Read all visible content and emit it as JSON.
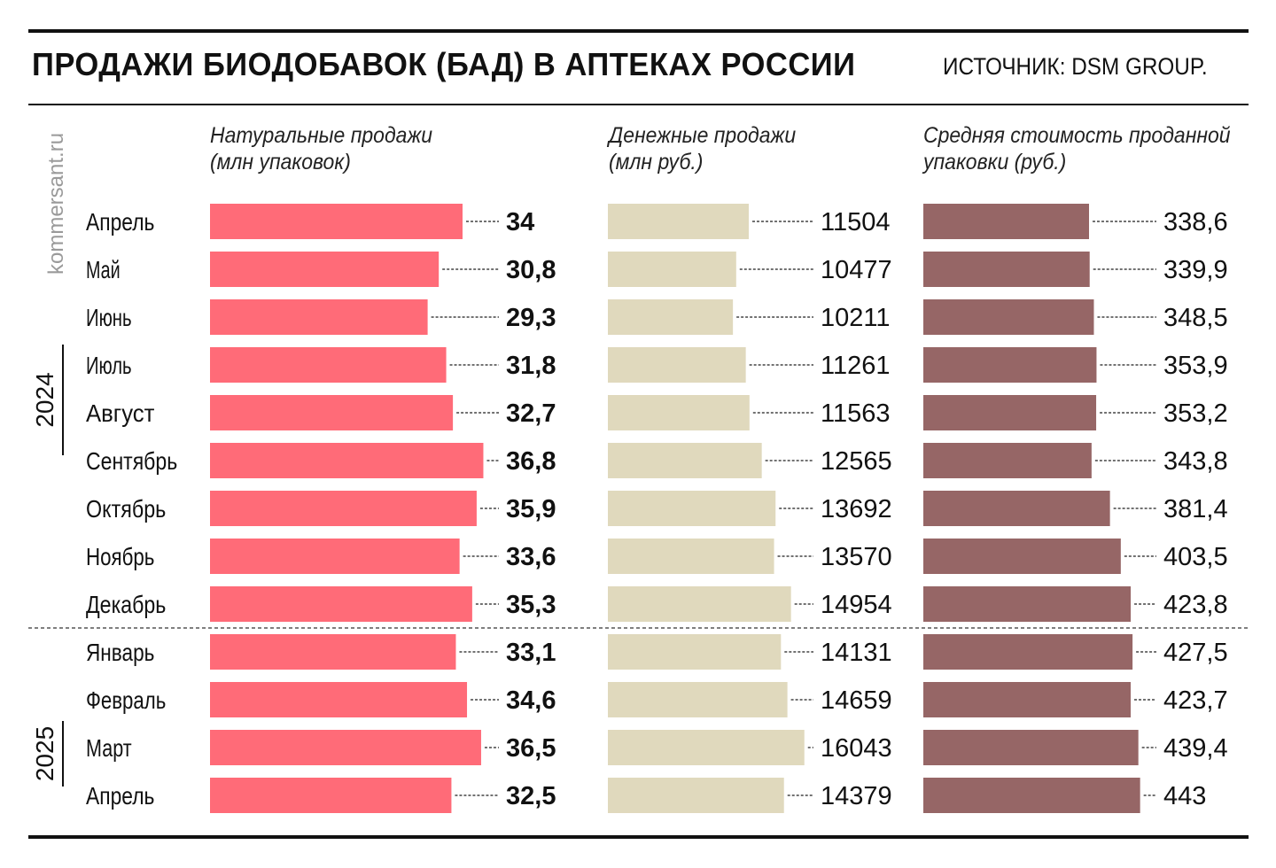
{
  "header": {
    "title": "ПРОДАЖИ БИОДОБАВОК (БАД) В АПТЕКАХ РОССИИ",
    "source": "ИСТОЧНИК: DSM GROUP.",
    "watermark": "kommersant.ru"
  },
  "colors": {
    "units": "#ff6b78",
    "money": "#e0d9bd",
    "price": "#966666",
    "text": "#111111",
    "divider": "#555555"
  },
  "chart_data": {
    "type": "bar",
    "orientation": "horizontal",
    "categories": [
      "Апрель",
      "Май",
      "Июнь",
      "Июль",
      "Август",
      "Сентябрь",
      "Октябрь",
      "Ноябрь",
      "Декабрь",
      "Январь",
      "Февраль",
      "Март",
      "Апрель"
    ],
    "years": [
      {
        "label": "2024",
        "from": 0,
        "to": 8
      },
      {
        "label": "2025",
        "from": 9,
        "to": 12
      }
    ],
    "panels": [
      {
        "title": "Натуральные продажи\n(млн упаковок)",
        "values": [
          34,
          30.8,
          29.3,
          31.8,
          32.7,
          36.8,
          35.9,
          33.6,
          35.3,
          33.1,
          34.6,
          36.5,
          32.5
        ],
        "labels": [
          "34",
          "30,8",
          "29,3",
          "31,8",
          "32,7",
          "36,8",
          "35,9",
          "33,6",
          "35,3",
          "33,1",
          "34,6",
          "36,5",
          "32,5"
        ],
        "bold": true
      },
      {
        "title": "Денежные продажи\n(млн руб.)",
        "values": [
          11504,
          10477,
          10211,
          11261,
          11563,
          12565,
          13692,
          13570,
          14954,
          14131,
          14659,
          16043,
          14379
        ],
        "labels": [
          "11504",
          "10477",
          "10211",
          "11261",
          "11563",
          "12565",
          "13692",
          "13570",
          "14954",
          "14131",
          "14659",
          "16043",
          "14379"
        ],
        "bold": false
      },
      {
        "title": "Средняя стоимость проданной\nупаковки (руб.)",
        "values": [
          338.6,
          339.9,
          348.5,
          353.9,
          353.2,
          343.8,
          381.4,
          403.5,
          423.8,
          427.5,
          423.7,
          439.4,
          443
        ],
        "labels": [
          "338,6",
          "339,9",
          "348,5",
          "353,9",
          "353,2",
          "343,8",
          "381,4",
          "403,5",
          "423,8",
          "427,5",
          "423,7",
          "439,4",
          "443"
        ],
        "bold": false
      }
    ]
  }
}
